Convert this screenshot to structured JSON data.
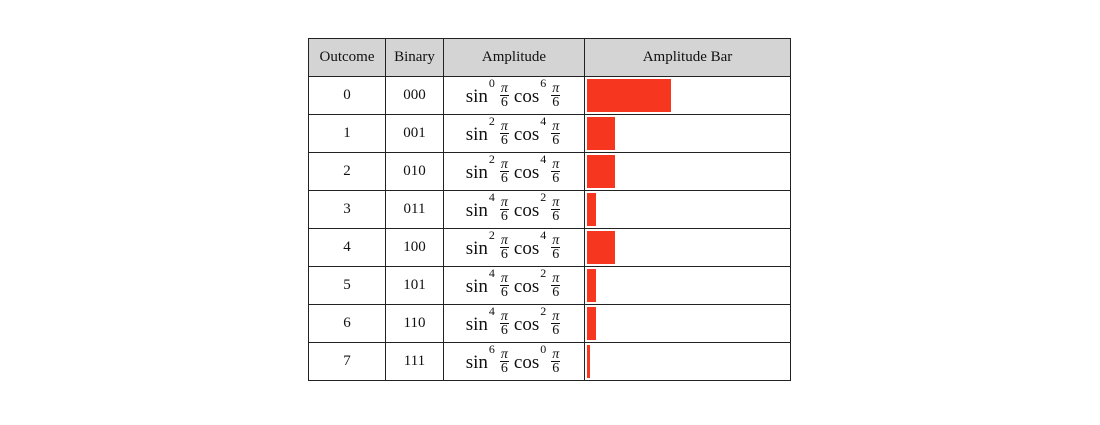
{
  "table": {
    "headers": [
      "Outcome",
      "Binary",
      "Amplitude",
      "Amplitude Bar"
    ],
    "bar_color": "#f73620",
    "rows": [
      {
        "outcome": "0",
        "binary": "000",
        "sin_exp": "0",
        "cos_exp": "6",
        "amplitude": 0.4219
      },
      {
        "outcome": "1",
        "binary": "001",
        "sin_exp": "2",
        "cos_exp": "4",
        "amplitude": 0.1406
      },
      {
        "outcome": "2",
        "binary": "010",
        "sin_exp": "2",
        "cos_exp": "4",
        "amplitude": 0.1406
      },
      {
        "outcome": "3",
        "binary": "011",
        "sin_exp": "4",
        "cos_exp": "2",
        "amplitude": 0.0469
      },
      {
        "outcome": "4",
        "binary": "100",
        "sin_exp": "2",
        "cos_exp": "4",
        "amplitude": 0.1406
      },
      {
        "outcome": "5",
        "binary": "101",
        "sin_exp": "4",
        "cos_exp": "2",
        "amplitude": 0.0469
      },
      {
        "outcome": "6",
        "binary": "110",
        "sin_exp": "4",
        "cos_exp": "2",
        "amplitude": 0.0469
      },
      {
        "outcome": "7",
        "binary": "111",
        "sin_exp": "6",
        "cos_exp": "0",
        "amplitude": 0.0156
      }
    ],
    "formula": {
      "sin_label": "sin",
      "cos_label": "cos",
      "frac_num": "π",
      "frac_den": "6"
    }
  }
}
